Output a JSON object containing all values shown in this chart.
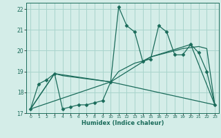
{
  "xlabel": "Humidex (Indice chaleur)",
  "bg_color": "#d4ede8",
  "grid_color": "#a8d4cc",
  "line_color": "#1a6b5a",
  "xlim": [
    -0.5,
    23.5
  ],
  "ylim": [
    17,
    22.3
  ],
  "xticks": [
    0,
    1,
    2,
    3,
    4,
    5,
    6,
    7,
    8,
    9,
    10,
    11,
    12,
    13,
    14,
    15,
    16,
    17,
    18,
    19,
    20,
    21,
    22,
    23
  ],
  "yticks": [
    17,
    18,
    19,
    20,
    21,
    22
  ],
  "line1_x": [
    0,
    1,
    2,
    3,
    4,
    5,
    6,
    7,
    8,
    9,
    10,
    11,
    12,
    13,
    14,
    15,
    16,
    17,
    18,
    19,
    20,
    21,
    22,
    23
  ],
  "line1_y": [
    17.2,
    18.4,
    18.6,
    18.9,
    17.2,
    17.3,
    17.4,
    17.4,
    17.5,
    17.6,
    18.5,
    22.1,
    21.2,
    20.9,
    19.5,
    19.6,
    21.2,
    20.9,
    19.8,
    19.8,
    20.3,
    19.9,
    19.0,
    17.4
  ],
  "line2_x": [
    0,
    3,
    4,
    10,
    11,
    12,
    13,
    14,
    15,
    16,
    17,
    18,
    19,
    20,
    21,
    22,
    23
  ],
  "line2_y": [
    17.2,
    18.9,
    18.8,
    18.5,
    19.0,
    19.2,
    19.4,
    19.5,
    19.7,
    19.8,
    19.9,
    20.0,
    20.1,
    20.15,
    20.2,
    20.1,
    17.4
  ],
  "line3_x": [
    0,
    3,
    10,
    23
  ],
  "line3_y": [
    17.2,
    18.9,
    18.5,
    17.4
  ],
  "line4_x": [
    0,
    10,
    15,
    20,
    23
  ],
  "line4_y": [
    17.2,
    18.5,
    19.7,
    20.3,
    17.4
  ]
}
